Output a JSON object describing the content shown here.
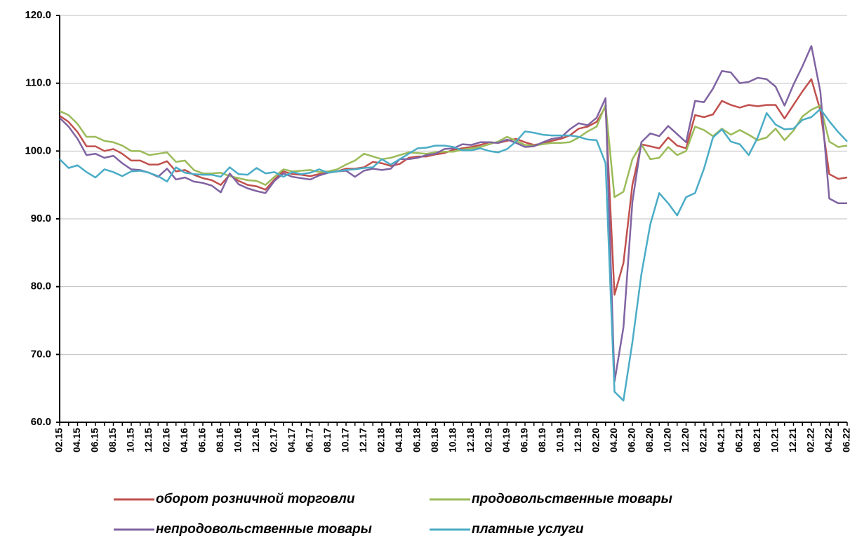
{
  "chart_data": {
    "type": "line",
    "categories": [
      "02.15",
      null,
      "04.15",
      null,
      "06.15",
      null,
      "08.15",
      null,
      "10.15",
      null,
      "12.15",
      null,
      "02.16",
      null,
      "04.16",
      null,
      "06.16",
      null,
      "08.16",
      null,
      "10.16",
      null,
      "12.16",
      null,
      "02.17",
      null,
      "04.17",
      null,
      "06.17",
      null,
      "08.17",
      null,
      "10.17",
      null,
      "12.17",
      null,
      "02.18",
      null,
      "04.18",
      null,
      "06.18",
      null,
      "08.18",
      null,
      "10.18",
      null,
      "12.18",
      null,
      "02.19",
      null,
      "04.19",
      null,
      "06.19",
      null,
      "08.19",
      null,
      "10.19",
      null,
      "12.19",
      null,
      "02.20",
      null,
      "04.20",
      null,
      "06.20",
      null,
      "08.20",
      null,
      "10.20",
      null,
      "12.20",
      null,
      "02.21",
      null,
      "04.21",
      null,
      "06.21",
      null,
      "08.21",
      null,
      "10.21",
      null,
      "12.21",
      null,
      "02.22",
      null,
      "04.22",
      null,
      "06.22"
    ],
    "series": [
      {
        "name": "оборот розничной торговли",
        "color": "#c0504d",
        "values": [
          105.2,
          104.3,
          102.8,
          100.7,
          100.7,
          100.0,
          100.3,
          99.6,
          98.6,
          98.6,
          98.0,
          98.0,
          98.5,
          97.0,
          97.2,
          96.5,
          96.0,
          95.7,
          95.0,
          96.5,
          95.6,
          95.0,
          94.8,
          94.3,
          95.8,
          97.0,
          96.6,
          96.5,
          96.3,
          96.6,
          96.8,
          97.0,
          97.4,
          97.4,
          97.6,
          98.4,
          98.2,
          97.8,
          98.1,
          99.0,
          99.2,
          99.2,
          99.5,
          99.7,
          100.2,
          100.4,
          100.6,
          100.9,
          101.3,
          101.2,
          101.5,
          101.8,
          101.3,
          100.9,
          101.1,
          101.5,
          101.8,
          102.3,
          103.3,
          103.6,
          104.3,
          106.5,
          78.8,
          83.5,
          95.0,
          101.0,
          100.7,
          100.4,
          102.0,
          100.8,
          100.4,
          105.3,
          105.0,
          105.4,
          107.4,
          106.8,
          106.4,
          106.8,
          106.6,
          106.8,
          106.8,
          104.8,
          106.8,
          108.8,
          110.6,
          106.0,
          96.6,
          95.9,
          96.1
        ]
      },
      {
        "name": "продовольственные товары",
        "color": "#9bbb59",
        "values": [
          105.9,
          105.3,
          104.0,
          102.1,
          102.1,
          101.5,
          101.3,
          100.8,
          100.0,
          100.0,
          99.4,
          99.6,
          99.8,
          98.4,
          98.6,
          97.2,
          96.7,
          96.7,
          96.8,
          96.3,
          96.0,
          95.7,
          95.6,
          95.0,
          96.2,
          97.3,
          97.0,
          97.1,
          97.2,
          96.9,
          97.0,
          97.3,
          98.0,
          98.6,
          99.6,
          99.2,
          98.8,
          99.0,
          99.4,
          99.8,
          99.7,
          99.6,
          99.8,
          99.9,
          99.9,
          100.2,
          100.4,
          100.6,
          101.0,
          101.4,
          102.1,
          101.5,
          100.9,
          100.8,
          101.0,
          101.2,
          101.2,
          101.3,
          102.0,
          102.9,
          103.6,
          106.8,
          93.2,
          94.0,
          98.8,
          101.0,
          98.8,
          99.0,
          100.6,
          99.4,
          100.0,
          103.6,
          103.1,
          102.2,
          103.3,
          102.4,
          103.1,
          102.4,
          101.6,
          102.0,
          103.3,
          101.6,
          103.0,
          105.1,
          106.1,
          106.7,
          101.4,
          100.6,
          100.8
        ]
      },
      {
        "name": "непродовольственные товары",
        "color": "#8064a2",
        "values": [
          104.9,
          103.6,
          101.8,
          99.4,
          99.6,
          99.0,
          99.3,
          98.2,
          97.3,
          97.2,
          96.8,
          96.2,
          97.4,
          95.8,
          96.1,
          95.5,
          95.3,
          94.9,
          93.9,
          96.7,
          95.1,
          94.5,
          94.1,
          93.8,
          95.6,
          96.7,
          96.2,
          96.0,
          95.8,
          96.4,
          96.8,
          97.0,
          97.1,
          96.2,
          97.1,
          97.4,
          97.2,
          97.4,
          98.8,
          98.8,
          99.0,
          99.4,
          99.6,
          100.3,
          100.4,
          101.0,
          100.9,
          101.3,
          101.3,
          101.2,
          101.7,
          101.2,
          100.6,
          100.7,
          101.3,
          101.8,
          102.0,
          103.2,
          104.1,
          103.8,
          104.9,
          107.8,
          66.0,
          74.0,
          92.5,
          101.3,
          102.6,
          102.2,
          103.7,
          102.5,
          101.3,
          107.4,
          107.2,
          109.2,
          111.8,
          111.6,
          110.0,
          110.2,
          110.8,
          110.6,
          109.5,
          106.7,
          109.8,
          112.5,
          115.5,
          108.8,
          93.0,
          92.3,
          92.3
        ]
      },
      {
        "name": "платные услуги",
        "color": "#4bacc6",
        "values": [
          98.8,
          97.5,
          97.9,
          96.9,
          96.1,
          97.3,
          96.9,
          96.3,
          97.0,
          97.1,
          96.8,
          96.3,
          95.5,
          97.6,
          96.8,
          96.6,
          96.5,
          96.5,
          96.2,
          97.6,
          96.6,
          96.5,
          97.5,
          96.7,
          96.9,
          96.2,
          96.9,
          96.6,
          96.8,
          97.3,
          96.8,
          97.0,
          97.2,
          97.3,
          97.5,
          97.6,
          98.8,
          98.0,
          98.8,
          99.6,
          100.4,
          100.5,
          100.8,
          100.8,
          100.6,
          100.1,
          100.1,
          100.4,
          100.0,
          99.8,
          100.3,
          101.4,
          102.9,
          102.7,
          102.4,
          102.3,
          102.3,
          102.3,
          102.1,
          101.7,
          101.6,
          98.2,
          64.5,
          63.2,
          71.8,
          81.8,
          89.2,
          93.8,
          92.3,
          90.5,
          93.2,
          93.8,
          97.4,
          102.0,
          103.2,
          101.4,
          101.0,
          99.4,
          102.0,
          105.6,
          103.9,
          103.2,
          103.3,
          104.6,
          105.0,
          106.2,
          104.4,
          102.8,
          101.4
        ]
      }
    ],
    "ylim": [
      60,
      120
    ],
    "yticks": [
      {
        "value": 60,
        "label": "60.0"
      },
      {
        "value": 70,
        "label": "70.0"
      },
      {
        "value": 80,
        "label": "80.0"
      },
      {
        "value": 90,
        "label": "90.0"
      },
      {
        "value": 100,
        "label": "100.0"
      },
      {
        "value": 110,
        "label": "110.0"
      },
      {
        "value": 120,
        "label": "120.0"
      }
    ],
    "grid": true,
    "legend": "bottom"
  }
}
